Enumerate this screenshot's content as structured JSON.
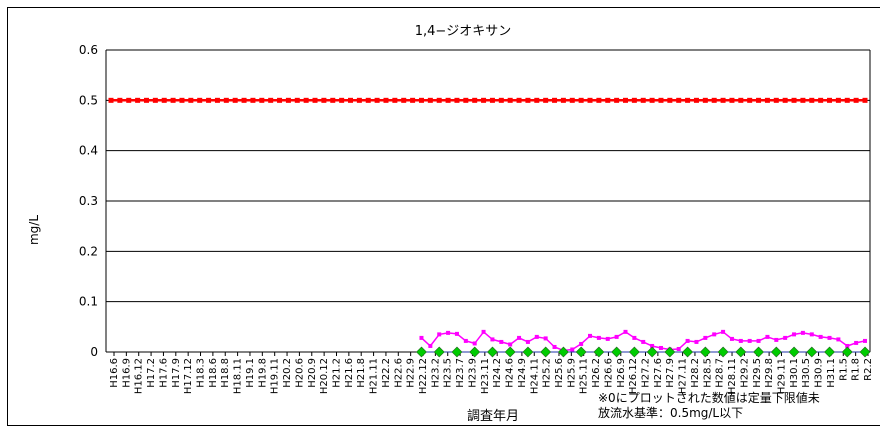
{
  "chart_data": {
    "type": "line",
    "title": "1,4−ジオキサン",
    "xlabel": "調査年月",
    "ylabel": "mg/L",
    "ylim": [
      0,
      0.6
    ],
    "yticks": [
      "0",
      "0.1",
      "0.2",
      "0.3",
      "0.4",
      "0.5",
      "0.6"
    ],
    "grid": true,
    "notes": [
      "※0にプロットされた数値は定量下限値未",
      "放流水基準：0.5mg/L以下"
    ],
    "x_labels": [
      "H16.6",
      "H16.9",
      "H16.12",
      "H17.2",
      "H17.6",
      "H17.9",
      "H17.12",
      "H18.3",
      "H18.6",
      "H18.8",
      "H18.11",
      "H19.1",
      "H19.8",
      "H19.11",
      "H20.2",
      "H20.6",
      "H20.9",
      "H20.12",
      "H21.2",
      "H21.6",
      "H21.8",
      "H21.11",
      "H22.2",
      "H22.6",
      "H22.9",
      "H22.12",
      "H23.2",
      "H23.5",
      "H23.7",
      "H23.9",
      "H23.11",
      "H24.2",
      "H24.6",
      "H24.9",
      "H24.11",
      "H25.2",
      "H25.6",
      "H25.9",
      "H25.11",
      "H26.2",
      "H26.6",
      "H26.9",
      "H26.12",
      "H27.2",
      "H27.6",
      "H27.9",
      "H27.11",
      "H28.2",
      "H28.5",
      "H28.7",
      "H28.11",
      "H29.2",
      "H29.5",
      "H29.8",
      "H29.11",
      "H30.1",
      "H30.5",
      "H30.9",
      "H31.1",
      "R1.5",
      "R1.8",
      "R2.2"
    ],
    "x_labels_per_row": 1,
    "n_points": 86,
    "series": [
      {
        "name": "",
        "role": "standard",
        "color": "#ff0000",
        "marker": "square",
        "values": [
          0.5,
          0.5,
          0.5,
          0.5,
          0.5,
          0.5,
          0.5,
          0.5,
          0.5,
          0.5,
          0.5,
          0.5,
          0.5,
          0.5,
          0.5,
          0.5,
          0.5,
          0.5,
          0.5,
          0.5,
          0.5,
          0.5,
          0.5,
          0.5,
          0.5,
          0.5,
          0.5,
          0.5,
          0.5,
          0.5,
          0.5,
          0.5,
          0.5,
          0.5,
          0.5,
          0.5,
          0.5,
          0.5,
          0.5,
          0.5,
          0.5,
          0.5,
          0.5,
          0.5,
          0.5,
          0.5,
          0.5,
          0.5,
          0.5,
          0.5,
          0.5,
          0.5,
          0.5,
          0.5,
          0.5,
          0.5,
          0.5,
          0.5,
          0.5,
          0.5,
          0.5,
          0.5,
          0.5,
          0.5,
          0.5,
          0.5,
          0.5,
          0.5,
          0.5,
          0.5,
          0.5,
          0.5,
          0.5,
          0.5,
          0.5,
          0.5,
          0.5,
          0.5,
          0.5,
          0.5,
          0.5,
          0.5,
          0.5,
          0.5,
          0.5,
          0.5
        ]
      },
      {
        "name": "",
        "role": "measured",
        "color": "#ff00ff",
        "marker": "square",
        "values": [
          null,
          null,
          null,
          null,
          null,
          null,
          null,
          null,
          null,
          null,
          null,
          null,
          null,
          null,
          null,
          null,
          null,
          null,
          null,
          null,
          null,
          null,
          null,
          null,
          null,
          null,
          null,
          null,
          null,
          null,
          null,
          null,
          null,
          null,
          null,
          null,
          null,
          null,
          null,
          null,
          null,
          null,
          null,
          null,
          null,
          null,
          null,
          null,
          null,
          null,
          null,
          null,
          null,
          null,
          null,
          null,
          null,
          null,
          null,
          null,
          null,
          null,
          null,
          null,
          null,
          null,
          null,
          null,
          null,
          null,
          null,
          null,
          null,
          null,
          null,
          null,
          null,
          null,
          null,
          null,
          null,
          null,
          null,
          null,
          null,
          null
        ]
      },
      {
        "name": "",
        "role": "below-detection",
        "color": "#00cc00",
        "marker": "diamond",
        "values": []
      }
    ],
    "measured_start_label": "H22.6",
    "measured_values": [
      0.028,
      0.012,
      0.035,
      0.038,
      0.036,
      0.022,
      0.017,
      0.04,
      0.025,
      0.02,
      0.015,
      0.028,
      0.02,
      0.03,
      0.027,
      0.01,
      0.003,
      0.005,
      0.016,
      0.032,
      0.028,
      0.026,
      0.03,
      0.04,
      0.028,
      0.02,
      0.012,
      0.008,
      0.005,
      0.006,
      0.022,
      0.02,
      0.028,
      0.035,
      0.04,
      0.026,
      0.022,
      0.022,
      0.022,
      0.03,
      0.024,
      0.028,
      0.035,
      0.038,
      0.035,
      0.03,
      0.028,
      0.025,
      0.012,
      0.018,
      0.022
    ],
    "below_detection_value": 0
  }
}
